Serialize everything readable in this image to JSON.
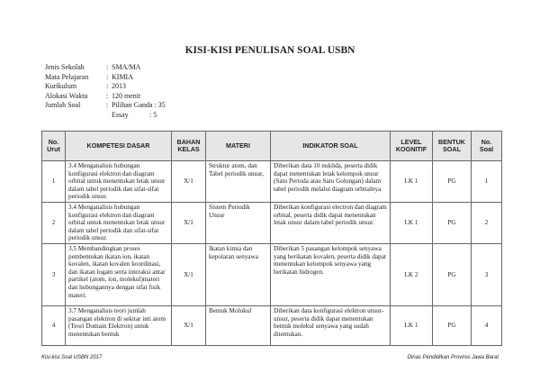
{
  "title": "KISI-KISI PENULISAN SOAL USBN",
  "info": [
    {
      "label": "Jenis Sekolah",
      "value": "SMA/MA"
    },
    {
      "label": "Mata Pelajaran",
      "value": "KIMIA"
    },
    {
      "label": "Kurikulum",
      "value": "2013"
    },
    {
      "label": "Alokasi Waktu",
      "value": "120 menit"
    },
    {
      "label": "Jumlah Soal",
      "value": "Pilihan Ganda : 35"
    }
  ],
  "essay": {
    "label": "Essay",
    "value": ": 5"
  },
  "table": {
    "headers": [
      "No. Urut",
      "KOMPETESI DASAR",
      "BAHAN KELAS",
      "MATERI",
      "INDIKATOR SOAL",
      "LEVEL KOGNITIF",
      "BENTUK SOAL",
      "No. Soal"
    ],
    "rows": [
      [
        "1",
        "3.4  Menganalisis hubungan konfigurasi elektron dan diagram orbital untuk menentukan letak unsur dalam tabel periodik dan sifat-sifat periodik unsur.",
        "X/1",
        "Struktur atom, dan Tabel periodik unsur,",
        "Diberikan data 10 nuklida, peserta didik dapat menentukan letak kelompok unsur (Satu Perioda atau Satu Golongan) dalam tabel periodik melalui diagram orbitalnya",
        "LK 1",
        "PG",
        "1"
      ],
      [
        "2",
        "3.4 Menganalisis hubungan konfigurasi elektron dan diagram orbital untuk menentukan letak unsur dalam tabel periodik dan sifat-sifat periodik unsur.",
        "X/1",
        "Sistem Periodik Unsur",
        "Diberikan konfigurasi electron dan diagram orbital, peserta didik dapat menentukan letak unsur dalam tabel periodik unsur.",
        "LK 1",
        "PG",
        "2"
      ],
      [
        "3",
        "3.5 Membandingkan proses pembentukan ikatan ion, ikatan kovalen, ikatan kovalen koordinasi, dan ikatan logam serta interaksi antar partikel (atom, ion, molekul)materi dan hubungannya dengan sifat fisik materi.",
        "X/1",
        "Ikatan kimia dan kepolaran senyawa",
        "Diberikan 5 pasangan kelompok senyawa yang berikatan kovalen, peserta didik dapat menentukan kelompok senyawa yang berikatan hidrogen.",
        "LK 2",
        "PG",
        "3"
      ],
      [
        "4",
        "3.7 Menganalisis teori jumlah pasangan elektron di sekitar inti atom (Teori Domain Elektron) untuk menentukan bentuk",
        "X/1",
        "Bentuk Molukul",
        "Diberikan data konfigurasi elektron unsur-unsur, peserta didik dapat menentukan bentuk molekul senyawa yang sudah ditentukan.",
        "LK 1",
        "PG",
        "4"
      ]
    ]
  },
  "footer": {
    "left": "Kisi-kisi Soal USBN 2017",
    "right": "Dinas Pendidikan Provinsi Jawa Barat"
  }
}
